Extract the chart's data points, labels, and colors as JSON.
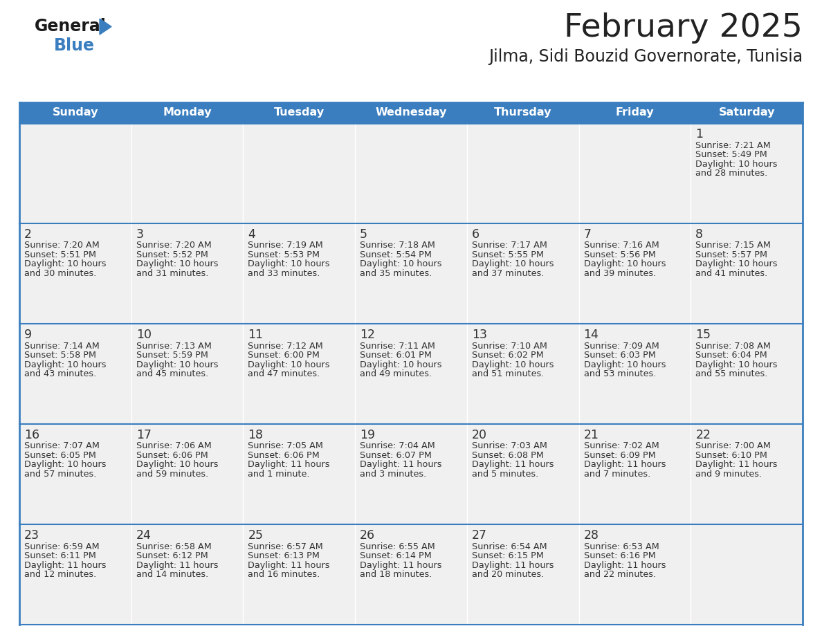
{
  "title": "February 2025",
  "subtitle": "Jilma, Sidi Bouzid Governorate, Tunisia",
  "header_color": "#3a7ebf",
  "header_text_color": "#ffffff",
  "day_names": [
    "Sunday",
    "Monday",
    "Tuesday",
    "Wednesday",
    "Thursday",
    "Friday",
    "Saturday"
  ],
  "title_color": "#222222",
  "subtitle_color": "#222222",
  "cell_bg_color": "#f0f0f0",
  "cell_bg_white": "#ffffff",
  "cell_border_color": "#3a7ebf",
  "day_num_color": "#333333",
  "info_color": "#333333",
  "logo_blue_color": "#3a7ebf",
  "days": [
    {
      "date": 1,
      "col": 6,
      "row": 0,
      "sunrise": "7:21 AM",
      "sunset": "5:49 PM",
      "daylight_line1": "Daylight: 10 hours",
      "daylight_line2": "and 28 minutes."
    },
    {
      "date": 2,
      "col": 0,
      "row": 1,
      "sunrise": "7:20 AM",
      "sunset": "5:51 PM",
      "daylight_line1": "Daylight: 10 hours",
      "daylight_line2": "and 30 minutes."
    },
    {
      "date": 3,
      "col": 1,
      "row": 1,
      "sunrise": "7:20 AM",
      "sunset": "5:52 PM",
      "daylight_line1": "Daylight: 10 hours",
      "daylight_line2": "and 31 minutes."
    },
    {
      "date": 4,
      "col": 2,
      "row": 1,
      "sunrise": "7:19 AM",
      "sunset": "5:53 PM",
      "daylight_line1": "Daylight: 10 hours",
      "daylight_line2": "and 33 minutes."
    },
    {
      "date": 5,
      "col": 3,
      "row": 1,
      "sunrise": "7:18 AM",
      "sunset": "5:54 PM",
      "daylight_line1": "Daylight: 10 hours",
      "daylight_line2": "and 35 minutes."
    },
    {
      "date": 6,
      "col": 4,
      "row": 1,
      "sunrise": "7:17 AM",
      "sunset": "5:55 PM",
      "daylight_line1": "Daylight: 10 hours",
      "daylight_line2": "and 37 minutes."
    },
    {
      "date": 7,
      "col": 5,
      "row": 1,
      "sunrise": "7:16 AM",
      "sunset": "5:56 PM",
      "daylight_line1": "Daylight: 10 hours",
      "daylight_line2": "and 39 minutes."
    },
    {
      "date": 8,
      "col": 6,
      "row": 1,
      "sunrise": "7:15 AM",
      "sunset": "5:57 PM",
      "daylight_line1": "Daylight: 10 hours",
      "daylight_line2": "and 41 minutes."
    },
    {
      "date": 9,
      "col": 0,
      "row": 2,
      "sunrise": "7:14 AM",
      "sunset": "5:58 PM",
      "daylight_line1": "Daylight: 10 hours",
      "daylight_line2": "and 43 minutes."
    },
    {
      "date": 10,
      "col": 1,
      "row": 2,
      "sunrise": "7:13 AM",
      "sunset": "5:59 PM",
      "daylight_line1": "Daylight: 10 hours",
      "daylight_line2": "and 45 minutes."
    },
    {
      "date": 11,
      "col": 2,
      "row": 2,
      "sunrise": "7:12 AM",
      "sunset": "6:00 PM",
      "daylight_line1": "Daylight: 10 hours",
      "daylight_line2": "and 47 minutes."
    },
    {
      "date": 12,
      "col": 3,
      "row": 2,
      "sunrise": "7:11 AM",
      "sunset": "6:01 PM",
      "daylight_line1": "Daylight: 10 hours",
      "daylight_line2": "and 49 minutes."
    },
    {
      "date": 13,
      "col": 4,
      "row": 2,
      "sunrise": "7:10 AM",
      "sunset": "6:02 PM",
      "daylight_line1": "Daylight: 10 hours",
      "daylight_line2": "and 51 minutes."
    },
    {
      "date": 14,
      "col": 5,
      "row": 2,
      "sunrise": "7:09 AM",
      "sunset": "6:03 PM",
      "daylight_line1": "Daylight: 10 hours",
      "daylight_line2": "and 53 minutes."
    },
    {
      "date": 15,
      "col": 6,
      "row": 2,
      "sunrise": "7:08 AM",
      "sunset": "6:04 PM",
      "daylight_line1": "Daylight: 10 hours",
      "daylight_line2": "and 55 minutes."
    },
    {
      "date": 16,
      "col": 0,
      "row": 3,
      "sunrise": "7:07 AM",
      "sunset": "6:05 PM",
      "daylight_line1": "Daylight: 10 hours",
      "daylight_line2": "and 57 minutes."
    },
    {
      "date": 17,
      "col": 1,
      "row": 3,
      "sunrise": "7:06 AM",
      "sunset": "6:06 PM",
      "daylight_line1": "Daylight: 10 hours",
      "daylight_line2": "and 59 minutes."
    },
    {
      "date": 18,
      "col": 2,
      "row": 3,
      "sunrise": "7:05 AM",
      "sunset": "6:06 PM",
      "daylight_line1": "Daylight: 11 hours",
      "daylight_line2": "and 1 minute."
    },
    {
      "date": 19,
      "col": 3,
      "row": 3,
      "sunrise": "7:04 AM",
      "sunset": "6:07 PM",
      "daylight_line1": "Daylight: 11 hours",
      "daylight_line2": "and 3 minutes."
    },
    {
      "date": 20,
      "col": 4,
      "row": 3,
      "sunrise": "7:03 AM",
      "sunset": "6:08 PM",
      "daylight_line1": "Daylight: 11 hours",
      "daylight_line2": "and 5 minutes."
    },
    {
      "date": 21,
      "col": 5,
      "row": 3,
      "sunrise": "7:02 AM",
      "sunset": "6:09 PM",
      "daylight_line1": "Daylight: 11 hours",
      "daylight_line2": "and 7 minutes."
    },
    {
      "date": 22,
      "col": 6,
      "row": 3,
      "sunrise": "7:00 AM",
      "sunset": "6:10 PM",
      "daylight_line1": "Daylight: 11 hours",
      "daylight_line2": "and 9 minutes."
    },
    {
      "date": 23,
      "col": 0,
      "row": 4,
      "sunrise": "6:59 AM",
      "sunset": "6:11 PM",
      "daylight_line1": "Daylight: 11 hours",
      "daylight_line2": "and 12 minutes."
    },
    {
      "date": 24,
      "col": 1,
      "row": 4,
      "sunrise": "6:58 AM",
      "sunset": "6:12 PM",
      "daylight_line1": "Daylight: 11 hours",
      "daylight_line2": "and 14 minutes."
    },
    {
      "date": 25,
      "col": 2,
      "row": 4,
      "sunrise": "6:57 AM",
      "sunset": "6:13 PM",
      "daylight_line1": "Daylight: 11 hours",
      "daylight_line2": "and 16 minutes."
    },
    {
      "date": 26,
      "col": 3,
      "row": 4,
      "sunrise": "6:55 AM",
      "sunset": "6:14 PM",
      "daylight_line1": "Daylight: 11 hours",
      "daylight_line2": "and 18 minutes."
    },
    {
      "date": 27,
      "col": 4,
      "row": 4,
      "sunrise": "6:54 AM",
      "sunset": "6:15 PM",
      "daylight_line1": "Daylight: 11 hours",
      "daylight_line2": "and 20 minutes."
    },
    {
      "date": 28,
      "col": 5,
      "row": 4,
      "sunrise": "6:53 AM",
      "sunset": "6:16 PM",
      "daylight_line1": "Daylight: 11 hours",
      "daylight_line2": "and 22 minutes."
    }
  ]
}
